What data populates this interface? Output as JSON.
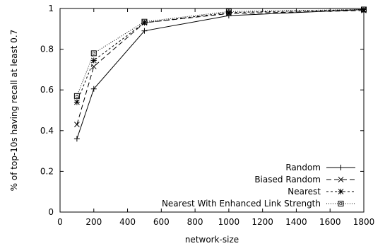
{
  "chart_data": {
    "type": "line",
    "xlabel": "network-size",
    "ylabel": "% of top-10s having recall at least 0.7",
    "xlim": [
      0,
      1800
    ],
    "ylim": [
      0,
      1
    ],
    "xticks": [
      0,
      200,
      400,
      600,
      800,
      1000,
      1200,
      1400,
      1600,
      1800
    ],
    "yticks": [
      0,
      0.2,
      0.4,
      0.6,
      0.8,
      1
    ],
    "ytick_labels": [
      "0",
      "0.2",
      "0.4",
      "0.6",
      "0.8",
      "1"
    ],
    "x": [
      100,
      200,
      500,
      1000,
      1800
    ],
    "legend_position": "bottom-right",
    "grid": false,
    "series": [
      {
        "name": "Random",
        "marker": "plus",
        "dash": "",
        "values": [
          0.36,
          0.605,
          0.89,
          0.965,
          0.995
        ]
      },
      {
        "name": "Biased Random",
        "marker": "cross",
        "dash": "7,4",
        "values": [
          0.43,
          0.715,
          0.93,
          0.975,
          0.99
        ]
      },
      {
        "name": "Nearest",
        "marker": "star",
        "dash": "3,3",
        "values": [
          0.54,
          0.745,
          0.93,
          0.98,
          0.995
        ]
      },
      {
        "name": "Nearest With Enhanced Link Strength",
        "marker": "square",
        "dash": "1,2",
        "values": [
          0.57,
          0.78,
          0.935,
          0.985,
          0.995
        ]
      }
    ]
  }
}
